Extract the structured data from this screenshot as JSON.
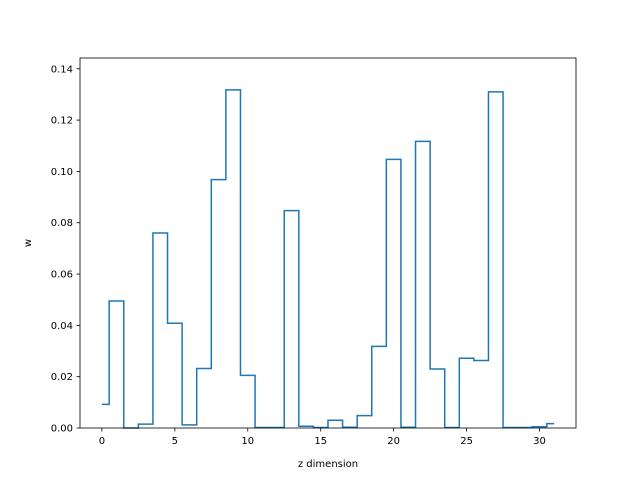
{
  "chart_data": {
    "type": "line",
    "style": "step",
    "title": "",
    "xlabel": "z dimension",
    "ylabel": "w",
    "xlim": [
      -1.5,
      32.5
    ],
    "ylim": [
      0,
      0.1442
    ],
    "x_ticks": [
      0,
      5,
      10,
      15,
      20,
      25,
      30
    ],
    "y_ticks": [
      "0.00",
      "0.02",
      "0.04",
      "0.06",
      "0.08",
      "0.10",
      "0.12",
      "0.14"
    ],
    "grid": false,
    "series": [
      {
        "color": "#1f77b4",
        "x": [
          0,
          1,
          2,
          3,
          4,
          5,
          6,
          7,
          8,
          9,
          10,
          11,
          12,
          13,
          14,
          15,
          16,
          17,
          18,
          19,
          20,
          21,
          22,
          23,
          24,
          25,
          26,
          27,
          28,
          29,
          30,
          31
        ],
        "values": [
          0.0092,
          0.0495,
          0.0,
          0.0015,
          0.076,
          0.0408,
          0.0012,
          0.0232,
          0.0968,
          0.1318,
          0.0205,
          0.0002,
          0.0002,
          0.0847,
          0.0007,
          0.0002,
          0.003,
          0.0003,
          0.0048,
          0.0318,
          0.1047,
          0.0003,
          0.1117,
          0.023,
          0.0002,
          0.0272,
          0.0263,
          0.131,
          0.0002,
          0.0002,
          0.0005,
          0.0017
        ]
      }
    ]
  }
}
